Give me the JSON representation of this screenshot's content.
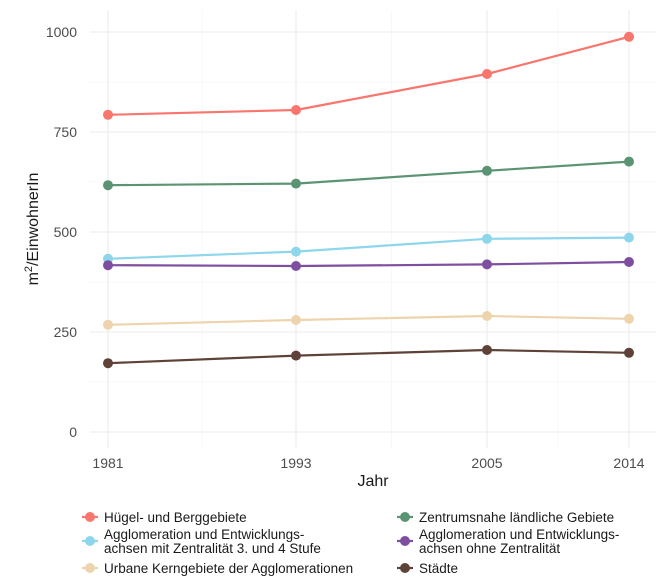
{
  "chart_data": {
    "type": "line",
    "title": "",
    "xlabel": "Jahr",
    "ylabel": "m²/EinwohnerIn",
    "ylabel_parts": {
      "unit": "m",
      "sup": "2",
      "rest": "/EinwohnerIn"
    },
    "x": [
      1981,
      1993,
      2005,
      2014
    ],
    "x_tick_labels": [
      "1981",
      "1993",
      "2005",
      "2014"
    ],
    "ylim": [
      0,
      1000
    ],
    "y_ticks": [
      0,
      250,
      500,
      750,
      1000
    ],
    "y_tick_labels": [
      "0",
      "250",
      "500",
      "750",
      "1000"
    ],
    "grid": true,
    "legend_position": "bottom",
    "series": [
      {
        "name": "Hügel- und Berggebiete",
        "name_lines": [
          "Hügel- und Berggebiete"
        ],
        "color": "#F8766D",
        "values": [
          793,
          805,
          895,
          988
        ]
      },
      {
        "name": "Zentrumsnahe ländliche Gebiete",
        "name_lines": [
          "Zentrumsnahe ländliche Gebiete"
        ],
        "color": "#5B9472",
        "values": [
          617,
          621,
          653,
          676
        ]
      },
      {
        "name": "Agglomeration und Entwicklungsachsen mit Zentralität 3. und 4 Stufe",
        "name_lines": [
          "Agglomeration und Entwicklungs-",
          "achsen mit Zentralität 3. und 4 Stufe"
        ],
        "color": "#8DD6EC",
        "values": [
          433,
          451,
          483,
          486
        ]
      },
      {
        "name": "Agglomeration und Entwicklungsachsen ohne Zentralität",
        "name_lines": [
          "Agglomeration und Entwicklungs-",
          "achsen ohne Zentralität"
        ],
        "color": "#7E4FA0",
        "values": [
          417,
          415,
          419,
          425
        ]
      },
      {
        "name": "Urbane Kerngebiete der Agglomerationen",
        "name_lines": [
          "Urbane Kerngebiete der Agglomerationen"
        ],
        "color": "#EDD4AD",
        "values": [
          268,
          280,
          290,
          283
        ]
      },
      {
        "name": "Städte",
        "name_lines": [
          "Städte"
        ],
        "color": "#5E4238",
        "values": [
          172,
          191,
          205,
          198
        ]
      }
    ]
  }
}
